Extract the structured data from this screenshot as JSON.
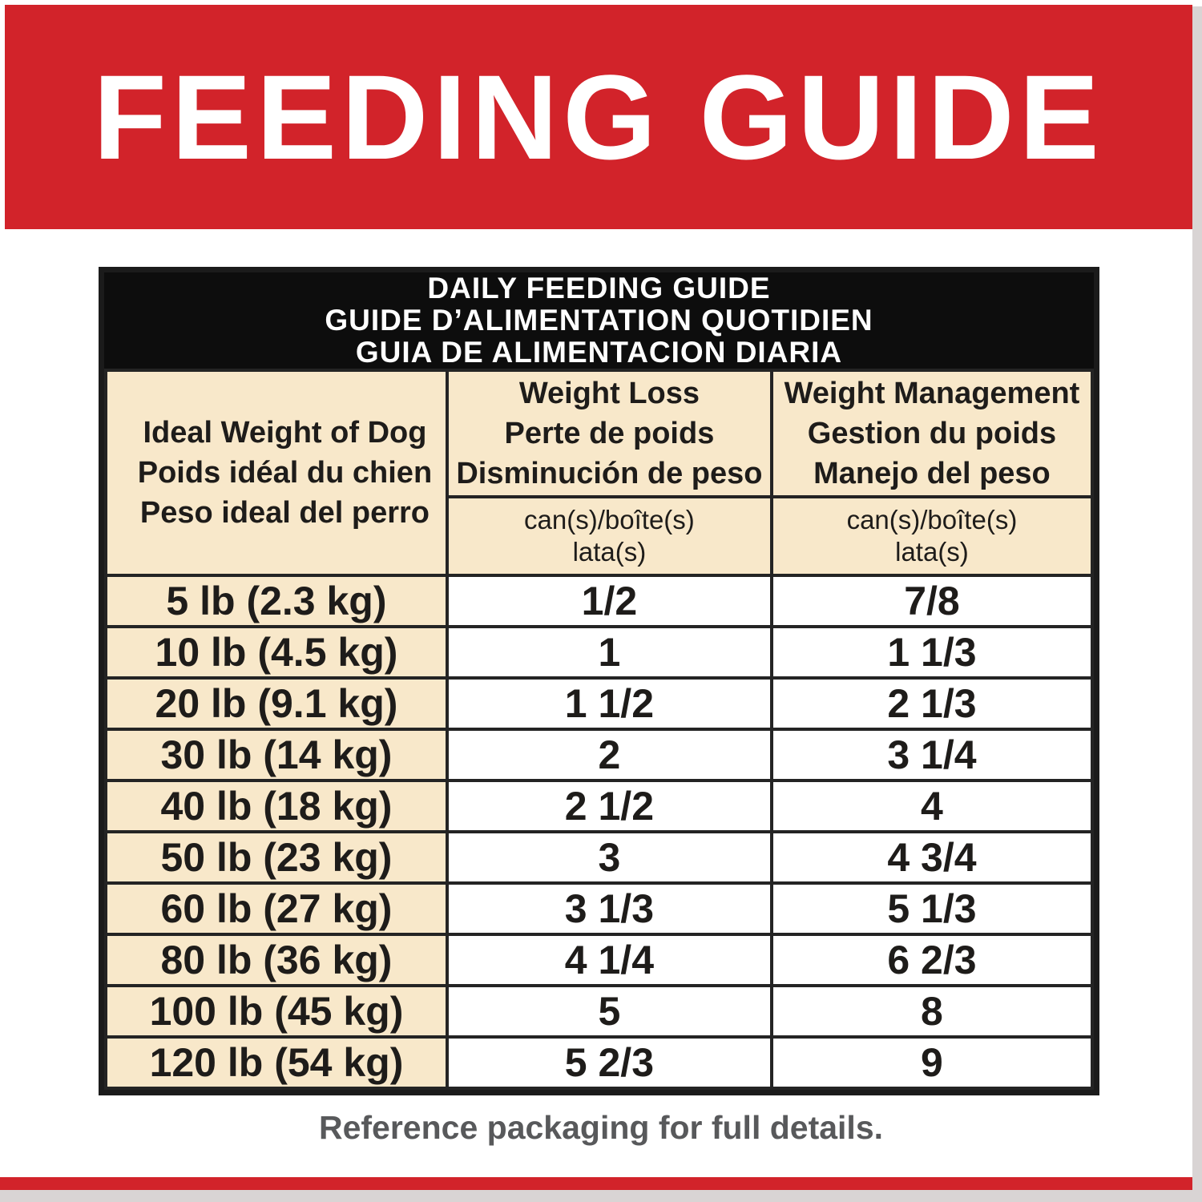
{
  "banner": {
    "title": "FEEDING GUIDE"
  },
  "table": {
    "title_en": "DAILY FEEDING GUIDE",
    "title_fr": "GUIDE D’ALIMENTATION QUOTIDIEN",
    "title_es": "GUIA DE ALIMENTACION DIARIA",
    "col_weight": {
      "line1": "Ideal Weight of Dog",
      "line2": "Poids idéal du chien",
      "line3": "Peso ideal del perro"
    },
    "col_loss": {
      "line1": "Weight Loss",
      "line2": "Perte de poids",
      "line3": "Disminución de peso",
      "unit1": "can(s)/boîte(s)",
      "unit2": "lata(s)"
    },
    "col_mgmt": {
      "line1": "Weight Management",
      "line2": "Gestion du poids",
      "line3": "Manejo del peso",
      "unit1": "can(s)/boîte(s)",
      "unit2": "lata(s)"
    },
    "rows": [
      {
        "weight": "5 lb (2.3 kg)",
        "loss": "1/2",
        "mgmt": "7/8"
      },
      {
        "weight": "10 lb (4.5 kg)",
        "loss": "1",
        "mgmt": "1 1/3"
      },
      {
        "weight": "20 lb (9.1 kg)",
        "loss": "1 1/2",
        "mgmt": "2 1/3"
      },
      {
        "weight": "30 lb (14 kg)",
        "loss": "2",
        "mgmt": "3 1/4"
      },
      {
        "weight": "40 lb (18 kg)",
        "loss": "2 1/2",
        "mgmt": "4"
      },
      {
        "weight": "50 lb (23 kg)",
        "loss": "3",
        "mgmt": "4 3/4"
      },
      {
        "weight": "60 lb (27 kg)",
        "loss": "3 1/3",
        "mgmt": "5 1/3"
      },
      {
        "weight": "80 lb (36 kg)",
        "loss": "4 1/4",
        "mgmt": "6 2/3"
      },
      {
        "weight": "100 lb (45 kg)",
        "loss": "5",
        "mgmt": "8"
      },
      {
        "weight": "120 lb (54 kg)",
        "loss": "5 2/3",
        "mgmt": "9"
      }
    ]
  },
  "footer": {
    "note": "Reference packaging for full details."
  },
  "colors": {
    "brand_red": "#d2232a",
    "cream": "#f8e8ca",
    "table_black": "#0d0d0d",
    "footer_gray": "#58595b",
    "edge_gray": "#d9d4d4"
  }
}
